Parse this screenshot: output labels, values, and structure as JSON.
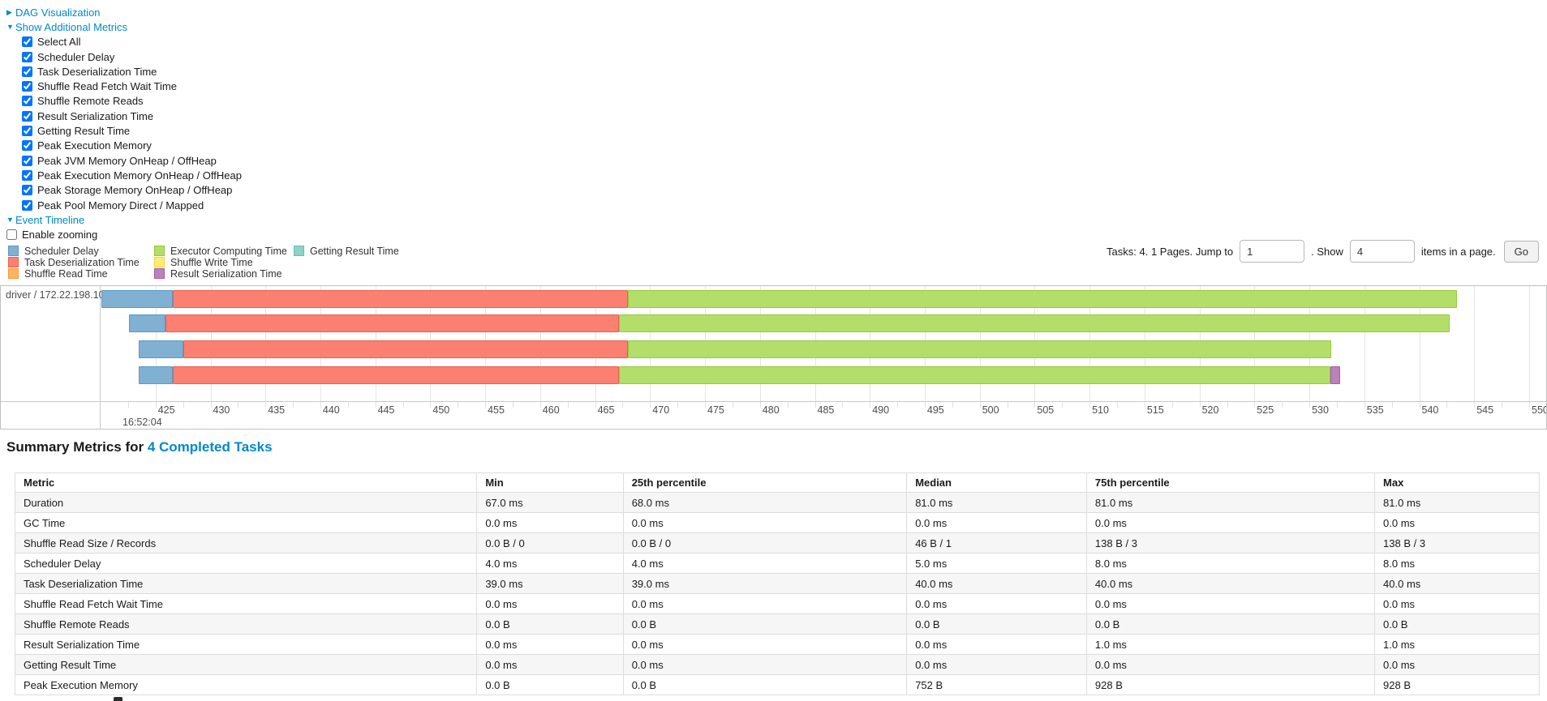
{
  "colors": {
    "link": "#0088cc",
    "scheduler_delay": {
      "fill": "#80B1D3",
      "border": "#5D97C2"
    },
    "deserialization": {
      "fill": "#FB8072",
      "border": "#E96052"
    },
    "shuffle_read": {
      "fill": "#FDB462",
      "border": "#F79A33"
    },
    "executor_computing": {
      "fill": "#B3DE69",
      "border": "#98C93F"
    },
    "shuffle_write": {
      "fill": "#FFED6F",
      "border": "#F0D83E"
    },
    "result_serialization": {
      "fill": "#BC80BD",
      "border": "#A55CA7"
    },
    "getting_result": {
      "fill": "#8DD3C7",
      "border": "#65BFAE"
    }
  },
  "sections": {
    "dag": {
      "label": "DAG Visualization",
      "state": "collapsed",
      "arrow": "▶"
    },
    "additional_metrics": {
      "label": "Show Additional Metrics",
      "state": "expanded",
      "arrow": "▼",
      "checkboxes": [
        {
          "label": "Select All",
          "checked": true
        },
        {
          "label": "Scheduler Delay",
          "checked": true
        },
        {
          "label": "Task Deserialization Time",
          "checked": true
        },
        {
          "label": "Shuffle Read Fetch Wait Time",
          "checked": true
        },
        {
          "label": "Shuffle Remote Reads",
          "checked": true
        },
        {
          "label": "Result Serialization Time",
          "checked": true
        },
        {
          "label": "Getting Result Time",
          "checked": true
        },
        {
          "label": "Peak Execution Memory",
          "checked": true
        },
        {
          "label": "Peak JVM Memory OnHeap / OffHeap",
          "checked": true
        },
        {
          "label": "Peak Execution Memory OnHeap / OffHeap",
          "checked": true
        },
        {
          "label": "Peak Storage Memory OnHeap / OffHeap",
          "checked": true
        },
        {
          "label": "Peak Pool Memory Direct / Mapped",
          "checked": true
        }
      ]
    },
    "event_timeline": {
      "label": "Event Timeline",
      "state": "expanded",
      "arrow": "▼"
    },
    "enable_zooming": {
      "label": "Enable zooming",
      "checked": false
    }
  },
  "legend": {
    "columns": [
      [
        {
          "label": "Scheduler Delay",
          "key": "scheduler_delay"
        },
        {
          "label": "Task Deserialization Time",
          "key": "deserialization"
        },
        {
          "label": "Shuffle Read Time",
          "key": "shuffle_read"
        }
      ],
      [
        {
          "label": "Executor Computing Time",
          "key": "executor_computing"
        },
        {
          "label": "Shuffle Write Time",
          "key": "shuffle_write"
        },
        {
          "label": "Result Serialization Time",
          "key": "result_serialization"
        }
      ],
      [
        {
          "label": "Getting Result Time",
          "key": "getting_result"
        }
      ]
    ]
  },
  "pagination": {
    "text_before_jump": "Tasks: 4. 1 Pages. Jump to",
    "jump_value": "1",
    "text_between": ". Show",
    "show_value": "4",
    "text_after": "items in a page.",
    "go_label": "Go"
  },
  "chart_data": {
    "type": "timeline",
    "group_label": "driver / 172.22.198.104",
    "axis": {
      "base_time_label": "16:52:04",
      "unit": "ms within 16:52:04",
      "window_start_ms": 420,
      "window_end_ms": 551.7,
      "tick_first_ms": 425,
      "tick_last_ms": 550,
      "tick_step_ms": 5,
      "minor_tick_step_ms": 2.5
    },
    "tasks": [
      {
        "segments": [
          {
            "key": "scheduler_delay",
            "start": 420.1,
            "end": 426.6
          },
          {
            "key": "deserialization",
            "start": 426.6,
            "end": 468.0
          },
          {
            "key": "executor_computing",
            "start": 468.0,
            "end": 543.4
          }
        ]
      },
      {
        "segments": [
          {
            "key": "scheduler_delay",
            "start": 422.6,
            "end": 425.9
          },
          {
            "key": "deserialization",
            "start": 425.9,
            "end": 467.2
          },
          {
            "key": "executor_computing",
            "start": 467.2,
            "end": 542.8
          }
        ]
      },
      {
        "segments": [
          {
            "key": "scheduler_delay",
            "start": 423.5,
            "end": 427.5
          },
          {
            "key": "deserialization",
            "start": 427.5,
            "end": 468.0
          },
          {
            "key": "executor_computing",
            "start": 468.0,
            "end": 532.0
          }
        ]
      },
      {
        "segments": [
          {
            "key": "scheduler_delay",
            "start": 423.5,
            "end": 426.6
          },
          {
            "key": "deserialization",
            "start": 426.6,
            "end": 467.2
          },
          {
            "key": "executor_computing",
            "start": 467.2,
            "end": 531.9
          },
          {
            "key": "result_serialization",
            "start": 531.9,
            "end": 532.8
          }
        ]
      }
    ]
  },
  "summary": {
    "title_prefix": "Summary Metrics for ",
    "title_link": "4 Completed Tasks",
    "columns": [
      "Metric",
      "Min",
      "25th percentile",
      "Median",
      "75th percentile",
      "Max"
    ],
    "rows": [
      {
        "metric": "Duration",
        "values": [
          "67.0 ms",
          "68.0 ms",
          "81.0 ms",
          "81.0 ms",
          "81.0 ms"
        ]
      },
      {
        "metric": "GC Time",
        "values": [
          "0.0 ms",
          "0.0 ms",
          "0.0 ms",
          "0.0 ms",
          "0.0 ms"
        ]
      },
      {
        "metric": "Shuffle Read Size / Records",
        "values": [
          "0.0 B / 0",
          "0.0 B / 0",
          "46 B / 1",
          "138 B / 3",
          "138 B / 3"
        ]
      },
      {
        "metric": "Scheduler Delay",
        "values": [
          "4.0 ms",
          "4.0 ms",
          "5.0 ms",
          "8.0 ms",
          "8.0 ms"
        ]
      },
      {
        "metric": "Task Deserialization Time",
        "values": [
          "39.0 ms",
          "39.0 ms",
          "40.0 ms",
          "40.0 ms",
          "40.0 ms"
        ]
      },
      {
        "metric": "Shuffle Read Fetch Wait Time",
        "values": [
          "0.0 ms",
          "0.0 ms",
          "0.0 ms",
          "0.0 ms",
          "0.0 ms"
        ]
      },
      {
        "metric": "Shuffle Remote Reads",
        "values": [
          "0.0 B",
          "0.0 B",
          "0.0 B",
          "0.0 B",
          "0.0 B"
        ]
      },
      {
        "metric": "Result Serialization Time",
        "values": [
          "0.0 ms",
          "0.0 ms",
          "0.0 ms",
          "1.0 ms",
          "1.0 ms"
        ]
      },
      {
        "metric": "Getting Result Time",
        "values": [
          "0.0 ms",
          "0.0 ms",
          "0.0 ms",
          "0.0 ms",
          "0.0 ms"
        ]
      },
      {
        "metric": "Peak Execution Memory",
        "values": [
          "0.0 B",
          "0.0 B",
          "752 B",
          "928 B",
          "928 B"
        ]
      }
    ]
  }
}
